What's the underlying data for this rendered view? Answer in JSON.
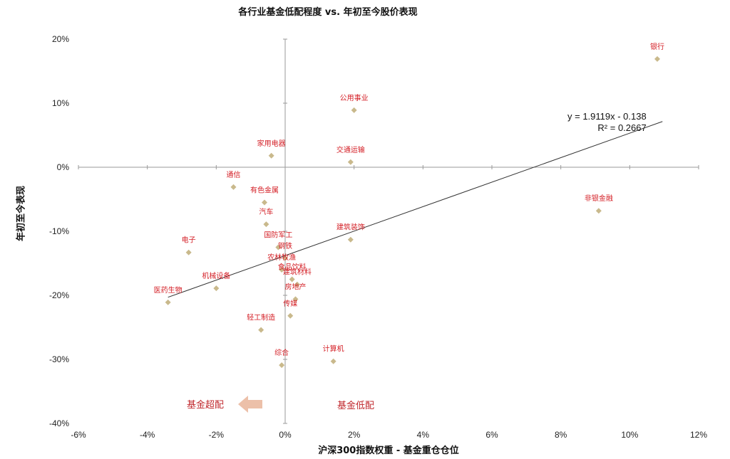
{
  "chart_data": {
    "type": "scatter",
    "title": "各行业基金低配程度 vs. 年初至今股价表现",
    "xlabel": "沪深300指数权重 - 基金重仓仓位",
    "ylabel": "年初至今表现",
    "xlim": [
      -0.06,
      0.12
    ],
    "ylim": [
      -0.4,
      0.2
    ],
    "x_ticks": [
      "-6%",
      "-4%",
      "-2%",
      "0%",
      "2%",
      "4%",
      "6%",
      "8%",
      "10%",
      "12%"
    ],
    "y_ticks": [
      "20%",
      "10%",
      "0%",
      "-10%",
      "-20%",
      "-30%",
      "-40%"
    ],
    "points": [
      {
        "label": "银行",
        "x": 0.108,
        "y": 0.169
      },
      {
        "label": "公用事业",
        "x": 0.02,
        "y": 0.089
      },
      {
        "label": "交通运输",
        "x": 0.019,
        "y": 0.008
      },
      {
        "label": "家用电器",
        "x": -0.004,
        "y": 0.018
      },
      {
        "label": "通信",
        "x": -0.015,
        "y": -0.031
      },
      {
        "label": "有色金属",
        "x": -0.006,
        "y": -0.055
      },
      {
        "label": "汽车",
        "x": -0.0055,
        "y": -0.089
      },
      {
        "label": "非银金融",
        "x": 0.091,
        "y": -0.068
      },
      {
        "label": "建筑装饰",
        "x": 0.019,
        "y": -0.113
      },
      {
        "label": "国防军工",
        "x": -0.002,
        "y": -0.125
      },
      {
        "label": "钢铁",
        "x": 0.0,
        "y": -0.142
      },
      {
        "label": "电子",
        "x": -0.028,
        "y": -0.133
      },
      {
        "label": "农林牧渔",
        "x": -0.001,
        "y": -0.16
      },
      {
        "label": "食品饮料",
        "x": 0.002,
        "y": -0.175
      },
      {
        "label": "建筑材料",
        "x": 0.0035,
        "y": -0.183
      },
      {
        "label": "机械设备",
        "x": -0.02,
        "y": -0.189
      },
      {
        "label": "房地产",
        "x": 0.003,
        "y": -0.206
      },
      {
        "label": "医药生物",
        "x": -0.034,
        "y": -0.211
      },
      {
        "label": "传媒",
        "x": 0.0015,
        "y": -0.232
      },
      {
        "label": "轻工制造",
        "x": -0.007,
        "y": -0.254
      },
      {
        "label": "综合",
        "x": -0.001,
        "y": -0.309
      },
      {
        "label": "计算机",
        "x": 0.014,
        "y": -0.303
      }
    ],
    "trendline": {
      "slope": 1.9119,
      "intercept": -0.138,
      "x_range": [
        -0.034,
        0.108
      ]
    },
    "equation": "y = 1.9119x - 0.138",
    "r_squared": "R² = 0.2667",
    "annotations": {
      "overweight": "基金超配",
      "underweight": "基金低配"
    },
    "marker_color": "#c9b98c",
    "label_color": "#d42027",
    "grid": false
  }
}
